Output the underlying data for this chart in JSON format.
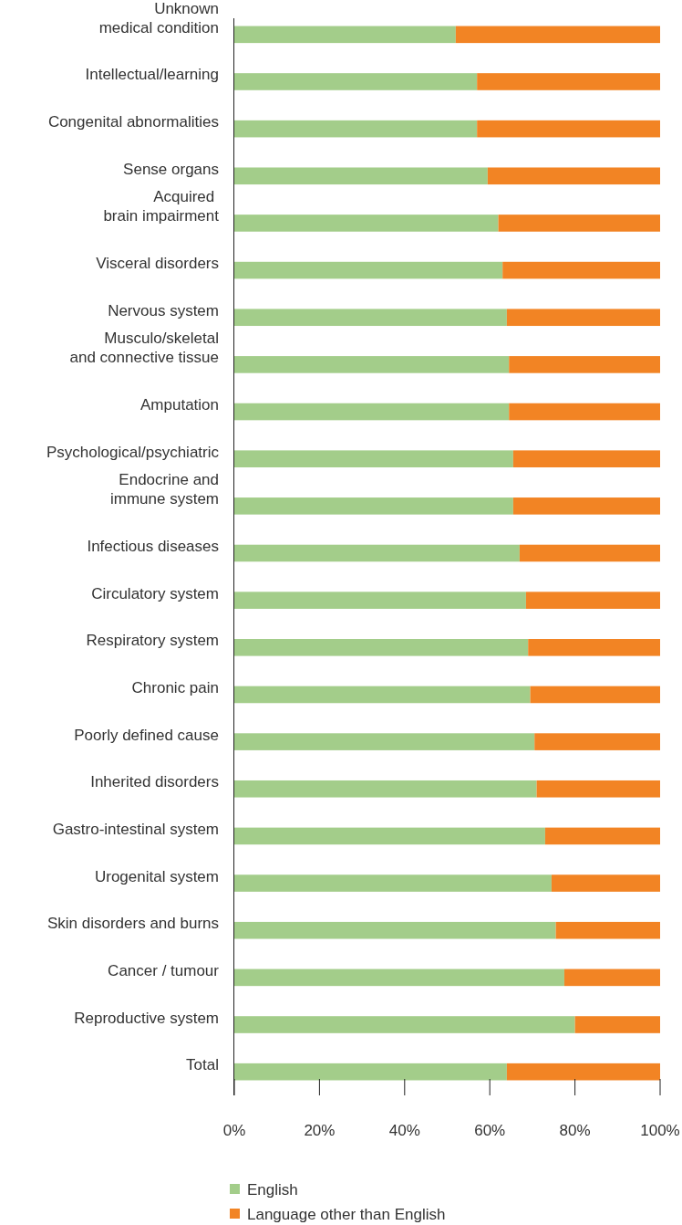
{
  "chart_data": {
    "type": "bar",
    "orientation": "horizontal",
    "stacked": true,
    "categories": [
      "Unknown\nmedical condition",
      "Intellectual/learning",
      "Congenital abnormalities",
      "Sense organs",
      "Acquired \nbrain impairment",
      "Visceral disorders",
      "Nervous system",
      "Musculo/skeletal\nand connective tissue",
      "Amputation",
      "Psychological/psychiatric",
      "Endocrine and\nimmune system",
      "Infectious diseases",
      "Circulatory system",
      "Respiratory system",
      "Chronic pain",
      "Poorly defined cause",
      "Inherited disorders",
      "Gastro-intestinal system",
      "Urogenital system",
      "Skin disorders and burns",
      "Cancer / tumour",
      "Reproductive system",
      "Total"
    ],
    "series": [
      {
        "name": "English",
        "color": "#a3cd8a",
        "values": [
          52,
          57,
          57,
          59.5,
          62,
          63,
          64,
          64.5,
          64.5,
          65.5,
          65.5,
          67,
          68.5,
          69,
          69.5,
          70.5,
          71,
          73,
          74.5,
          75.5,
          77.5,
          80,
          64
        ]
      },
      {
        "name": "Language other than English",
        "color": "#f28424",
        "values": [
          48,
          43,
          43,
          40.5,
          38,
          37,
          36,
          35.5,
          35.5,
          34.5,
          34.5,
          33,
          31.5,
          31,
          30.5,
          29.5,
          29,
          27,
          25.5,
          24.5,
          22.5,
          20,
          36
        ]
      }
    ],
    "xlim": [
      0,
      100
    ],
    "xticks": [
      {
        "value": 0,
        "label": "0%"
      },
      {
        "value": 20,
        "label": "20%"
      },
      {
        "value": 40,
        "label": "40%"
      },
      {
        "value": 60,
        "label": "60%"
      },
      {
        "value": 80,
        "label": "80%"
      },
      {
        "value": 100,
        "label": "100%"
      }
    ],
    "legend": "bottom",
    "grid": false
  }
}
